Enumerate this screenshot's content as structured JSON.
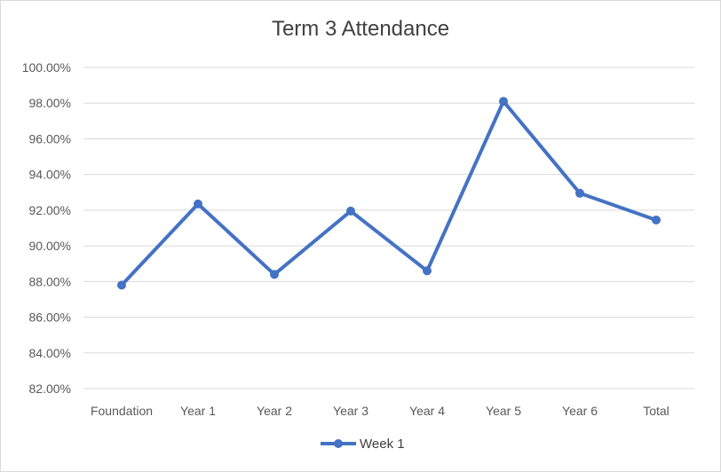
{
  "chart_data": {
    "type": "line",
    "title": "Term 3 Attendance",
    "xlabel": "",
    "ylabel": "",
    "categories": [
      "Foundation",
      "Year 1",
      "Year 2",
      "Year 3",
      "Year 4",
      "Year 5",
      "Year 6",
      "Total"
    ],
    "series": [
      {
        "name": "Week 1",
        "values": [
          87.8,
          92.35,
          88.4,
          91.95,
          88.6,
          98.1,
          92.95,
          91.45
        ],
        "color": "#4472c4"
      }
    ],
    "ylim": [
      82,
      100
    ],
    "yticks": [
      82,
      84,
      86,
      88,
      90,
      92,
      94,
      96,
      98,
      100
    ],
    "ytick_labels": [
      "82.00%",
      "84.00%",
      "86.00%",
      "88.00%",
      "90.00%",
      "92.00%",
      "94.00%",
      "96.00%",
      "98.00%",
      "100.00%"
    ],
    "grid": true,
    "legend_position": "bottom"
  }
}
